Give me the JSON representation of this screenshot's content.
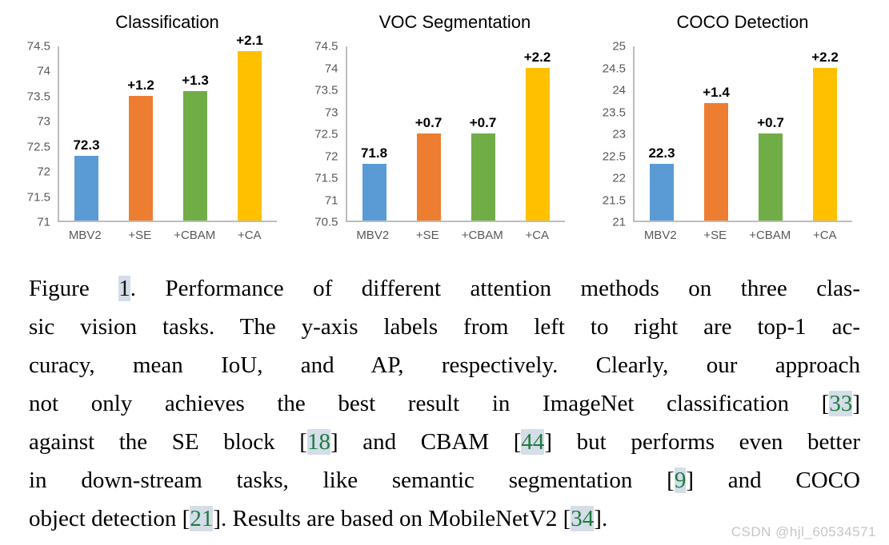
{
  "figure": {
    "watermark": "CSDN @hjl_60534571"
  },
  "bar_colors": [
    "#5B9BD5",
    "#ED7D31",
    "#70AD47",
    "#FFC000"
  ],
  "chart_data": [
    {
      "type": "bar",
      "title": "Classification",
      "categories": [
        "MBV2",
        "+SE",
        "+CBAM",
        "+CA"
      ],
      "values": [
        72.3,
        73.5,
        73.6,
        74.4
      ],
      "bar_labels": [
        "72.3",
        "+1.2",
        "+1.3",
        "+2.1"
      ],
      "ylim": [
        71,
        74.5
      ],
      "yticks": [
        74.5,
        74,
        73.5,
        73,
        72.5,
        72,
        71.5,
        71
      ],
      "grid": false,
      "legend": false
    },
    {
      "type": "bar",
      "title": "VOC Segmentation",
      "categories": [
        "MBV2",
        "+SE",
        "+CBAM",
        "+CA"
      ],
      "values": [
        71.8,
        72.5,
        72.5,
        74.0
      ],
      "bar_labels": [
        "71.8",
        "+0.7",
        "+0.7",
        "+2.2"
      ],
      "ylim": [
        70.5,
        74.5
      ],
      "yticks": [
        74.5,
        74,
        73.5,
        73,
        72.5,
        72,
        71.5,
        71,
        70.5
      ],
      "grid": false,
      "legend": false
    },
    {
      "type": "bar",
      "title": "COCO Detection",
      "categories": [
        "MBV2",
        "+SE",
        "+CBAM",
        "+CA"
      ],
      "values": [
        22.3,
        23.7,
        23.0,
        24.5
      ],
      "bar_labels": [
        "22.3",
        "+1.4",
        "+0.7",
        "+2.2"
      ],
      "ylim": [
        21,
        25
      ],
      "yticks": [
        25,
        24.5,
        24,
        23.5,
        23,
        22.5,
        22,
        21.5,
        21
      ],
      "grid": false,
      "legend": false
    }
  ],
  "caption": {
    "lines": [
      [
        {
          "t": "Figure ",
          "c": false
        },
        {
          "t": "1",
          "c": "ref"
        },
        {
          "t": ". Performance of different attention methods on three clas-",
          "c": false
        }
      ],
      [
        {
          "t": "sic vision tasks. The y-axis labels from left to right are top-1 ac-",
          "c": false
        }
      ],
      [
        {
          "t": "curacy, mean IoU, and AP, respectively. Clearly, our approach",
          "c": false
        }
      ],
      [
        {
          "t": "not only achieves the best result in ImageNet classification [",
          "c": false
        },
        {
          "t": "33",
          "c": "cite"
        },
        {
          "t": "]",
          "c": false
        }
      ],
      [
        {
          "t": "against the SE block [",
          "c": false
        },
        {
          "t": "18",
          "c": "cite"
        },
        {
          "t": "] and CBAM [",
          "c": false
        },
        {
          "t": "44",
          "c": "cite"
        },
        {
          "t": "] but performs even better",
          "c": false
        }
      ],
      [
        {
          "t": "in down-stream tasks, like semantic segmentation [",
          "c": false
        },
        {
          "t": "9",
          "c": "cite"
        },
        {
          "t": "] and COCO",
          "c": false
        }
      ],
      [
        {
          "t": "object detection [",
          "c": false
        },
        {
          "t": "21",
          "c": "cite"
        },
        {
          "t": "]. Results are based on MobileNetV2 [",
          "c": false
        },
        {
          "t": "34",
          "c": "cite"
        },
        {
          "t": "].",
          "c": false
        }
      ]
    ]
  }
}
